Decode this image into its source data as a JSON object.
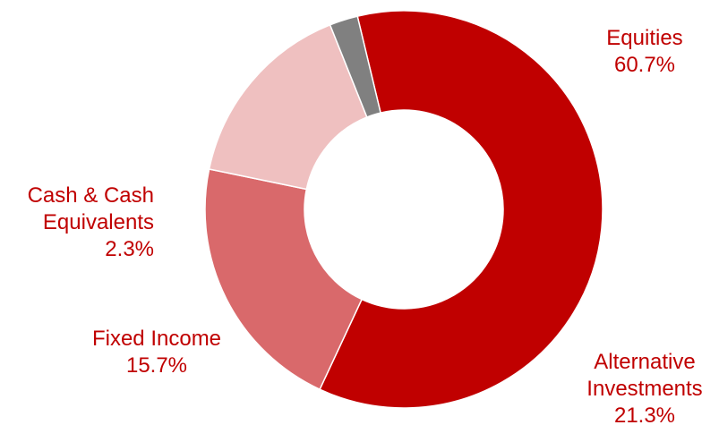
{
  "chart_data": {
    "type": "pie",
    "style": "donut",
    "slices": [
      {
        "name": "Equities",
        "value": 60.7,
        "label_lines": [
          "Equities"
        ],
        "value_label": "60.7%",
        "color": "#c00000"
      },
      {
        "name": "Alternative Investments",
        "value": 21.3,
        "label_lines": [
          "Alternative",
          "Investments"
        ],
        "value_label": "21.3%",
        "color": "#d9696b"
      },
      {
        "name": "Fixed Income",
        "value": 15.7,
        "label_lines": [
          "Fixed Income"
        ],
        "value_label": "15.7%",
        "color": "#efc0c0"
      },
      {
        "name": "Cash & Cash Equivalents",
        "value": 2.3,
        "label_lines": [
          "Cash & Cash",
          "Equivalents"
        ],
        "value_label": "2.3%",
        "color": "#808080"
      }
    ],
    "label_color": "#c00000"
  }
}
